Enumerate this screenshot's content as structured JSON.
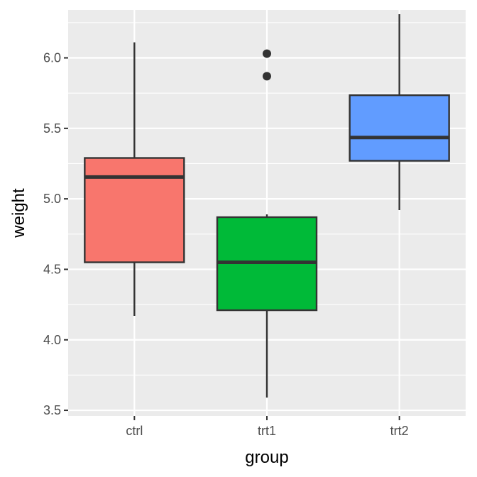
{
  "chart_data": {
    "type": "box",
    "xlabel": "group",
    "ylabel": "weight",
    "ylim": [
      3.46,
      6.34
    ],
    "y_ticks": [
      3.5,
      4.0,
      4.5,
      5.0,
      5.5,
      6.0
    ],
    "y_tick_labels": [
      "3.5",
      "4.0",
      "4.5",
      "5.0",
      "5.5",
      "6.0"
    ],
    "categories": [
      "ctrl",
      "trt1",
      "trt2"
    ],
    "grid": true,
    "legend": "none",
    "colors": {
      "panel_bg": "#ebebeb",
      "grid": "#ffffff",
      "box_edge": "#333333",
      "ctrl": "#f8766d",
      "trt1": "#00ba38",
      "trt2": "#619cff"
    },
    "boxes": [
      {
        "category": "ctrl",
        "whisker_low": 4.17,
        "q1": 4.55,
        "median": 5.155,
        "q3": 5.29,
        "whisker_high": 6.11,
        "outliers": []
      },
      {
        "category": "trt1",
        "whisker_low": 3.59,
        "q1": 4.21,
        "median": 4.55,
        "q3": 4.87,
        "whisker_high": 4.89,
        "outliers": [
          5.87,
          6.03
        ]
      },
      {
        "category": "trt2",
        "whisker_low": 4.92,
        "q1": 5.27,
        "median": 5.435,
        "q3": 5.735,
        "whisker_high": 6.31,
        "outliers": []
      }
    ]
  }
}
